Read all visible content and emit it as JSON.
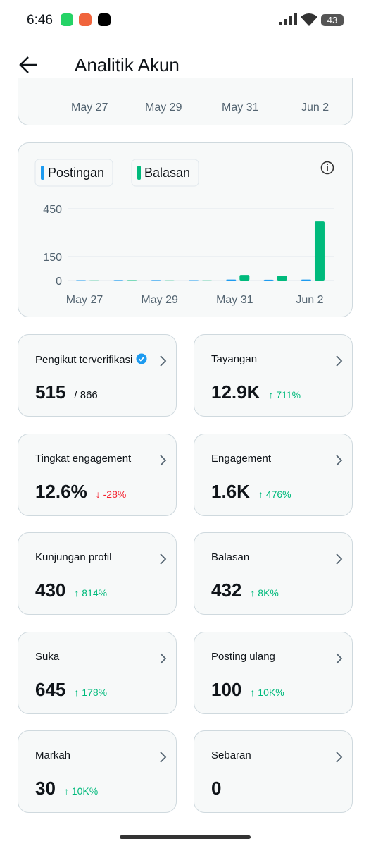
{
  "status_bar": {
    "time": "6:46",
    "battery": "43"
  },
  "header": {
    "title": "Analitik Akun"
  },
  "previous_chart": {
    "x_labels": [
      "May 27",
      "May 29",
      "May 31",
      "Jun 2"
    ]
  },
  "chart_data": {
    "type": "bar",
    "categories": [
      "May 27",
      null,
      "May 29",
      null,
      "May 31",
      null,
      "Jun 2"
    ],
    "series": [
      {
        "name": "Postingan",
        "color": "#1d9bf0",
        "values": [
          2,
          3,
          3,
          2,
          6,
          5,
          6
        ]
      },
      {
        "name": "Balasan",
        "color": "#00ba7c",
        "values": [
          1,
          2,
          1,
          1,
          35,
          28,
          370
        ]
      }
    ],
    "ylim": [
      0,
      450
    ],
    "yticks": [
      0,
      150,
      450
    ],
    "grid": true
  },
  "cards": [
    {
      "title": "Pengikut terverifikasi",
      "value": "515",
      "total": "/ 866"
    },
    {
      "title": "Tayangan",
      "value": "12.9K",
      "change": "↑ 711%",
      "change_color": "#00ba7c"
    },
    {
      "title": "Tingkat engagement",
      "value": "12.6%",
      "change": "↓ -28%",
      "change_color": "#f4212e"
    },
    {
      "title": "Engagement",
      "value": "1.6K",
      "change": "↑ 476%",
      "change_color": "#00ba7c"
    },
    {
      "title": "Kunjungan profil",
      "value": "430",
      "change": "↑ 814%",
      "change_color": "#00ba7c"
    },
    {
      "title": "Balasan",
      "value": "432",
      "change": "↑ 8K%",
      "change_color": "#00ba7c"
    },
    {
      "title": "Suka",
      "value": "645",
      "change": "↑ 178%",
      "change_color": "#00ba7c"
    },
    {
      "title": "Posting ulang",
      "value": "100",
      "change": "↑ 10K%",
      "change_color": "#00ba7c"
    },
    {
      "title": "Markah",
      "value": "30",
      "change": "↑ 10K%",
      "change_color": "#00ba7c"
    },
    {
      "title": "Sebaran",
      "value": "0"
    }
  ]
}
